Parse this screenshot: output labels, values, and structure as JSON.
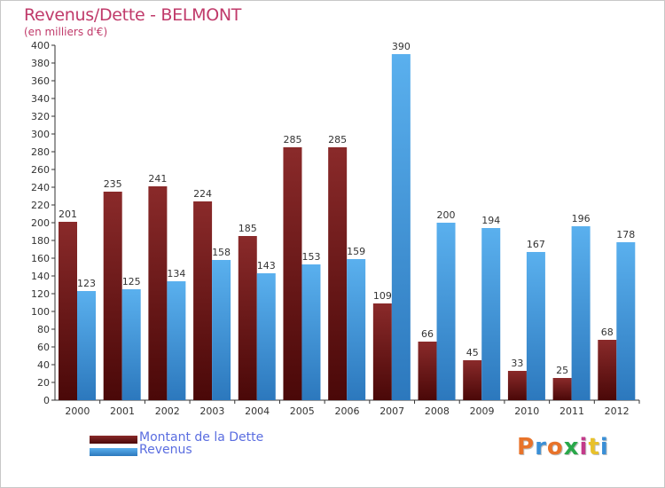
{
  "chart_data": {
    "type": "bar",
    "title": "Revenus/Dette - BELMONT",
    "subtitle": "(en milliers d'€)",
    "categories": [
      "2000",
      "2001",
      "2002",
      "2003",
      "2004",
      "2005",
      "2006",
      "2007",
      "2008",
      "2009",
      "2010",
      "2011",
      "2012"
    ],
    "series": [
      {
        "name": "Montant de la Dette",
        "color": "#7a1a1a",
        "values": [
          201,
          235,
          241,
          224,
          185,
          285,
          285,
          109,
          66,
          45,
          33,
          25,
          68
        ]
      },
      {
        "name": "Revenus",
        "color": "#4aa3e6",
        "values": [
          123,
          125,
          134,
          158,
          143,
          153,
          159,
          390,
          200,
          194,
          167,
          196,
          178
        ]
      }
    ],
    "ylim": [
      0,
      400
    ],
    "ytick_step": 20,
    "grid": false,
    "legend_position": "bottom-left"
  },
  "brand": {
    "text": "Proxiti",
    "letter_colors": [
      "#e8732a",
      "#3a8fd6",
      "#e8732a",
      "#2aa84a",
      "#c33a8a",
      "#e8c12a",
      "#3a8fd6"
    ]
  }
}
